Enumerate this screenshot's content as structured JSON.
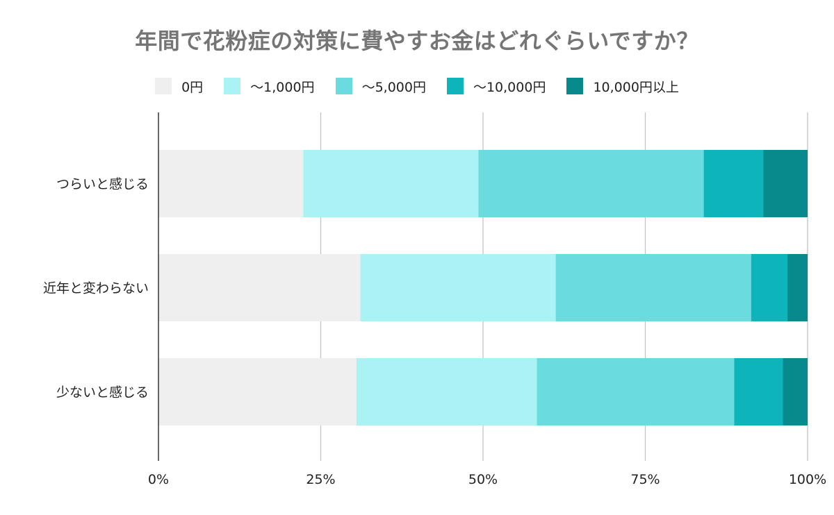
{
  "chart_data": {
    "type": "bar",
    "orientation": "horizontal",
    "stacked": true,
    "title": "年間で花粉症の対策に費やすお金はどれぐらいですか？",
    "categories": [
      "つらいと感じる",
      "近年と変わらない",
      "少ないと感じる"
    ],
    "series": [
      {
        "name": "0円",
        "color": "#efefef",
        "values": [
          22.3,
          31.1,
          30.5
        ]
      },
      {
        "name": "〜1,000円",
        "color": "#abf2f5",
        "values": [
          27.0,
          30.1,
          27.8
        ]
      },
      {
        "name": "〜5,000円",
        "color": "#6adcdf",
        "values": [
          34.7,
          30.1,
          30.4
        ]
      },
      {
        "name": "〜10,000円",
        "color": "#0db4ba",
        "values": [
          9.2,
          5.6,
          7.5
        ]
      },
      {
        "name": "10,000円以上",
        "color": "#088a8c",
        "values": [
          6.8,
          3.1,
          3.8
        ]
      }
    ],
    "xlim": [
      0,
      100
    ],
    "xticks": [
      0,
      25,
      50,
      75,
      100
    ],
    "xtick_labels": [
      "0%",
      "25%",
      "50%",
      "75%",
      "100%"
    ],
    "grid": true,
    "legend_position": "top"
  }
}
